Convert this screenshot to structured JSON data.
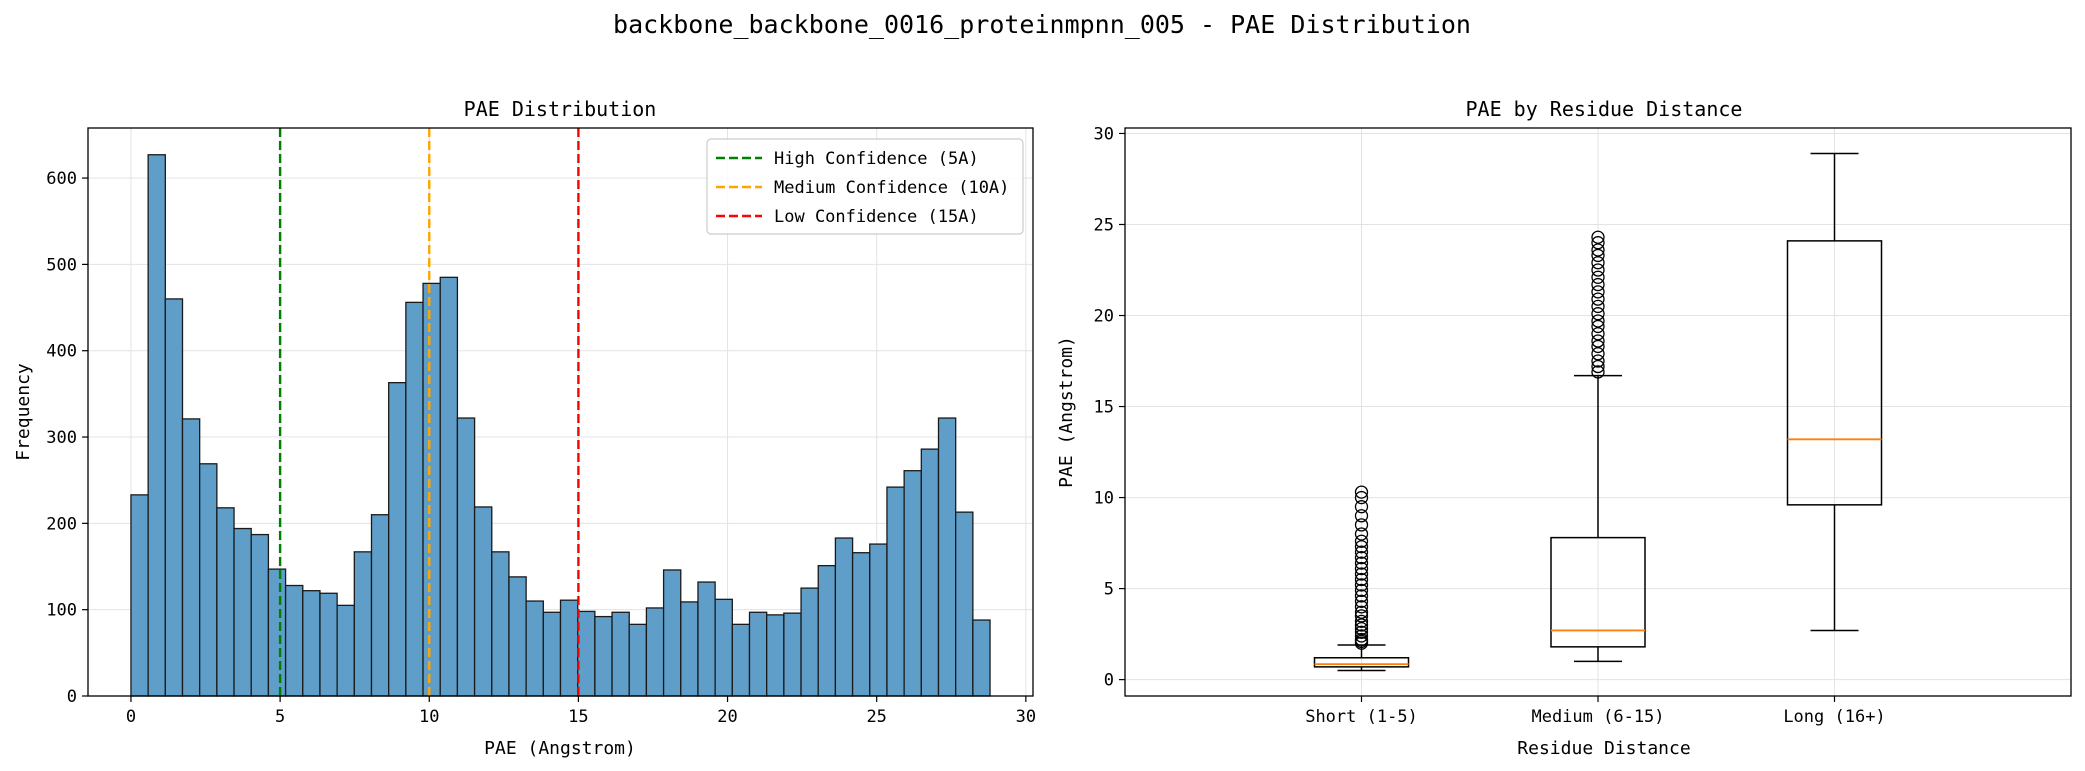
{
  "figure": {
    "suptitle": "backbone_backbone_0016_proteinmpnn_005 - PAE Distribution"
  },
  "chart_data": [
    {
      "type": "bar",
      "title": "PAE Distribution",
      "xlabel": "PAE (Angstrom)",
      "ylabel": "Frequency",
      "xlim": [
        -1.44,
        30.24
      ],
      "ylim": [
        0,
        658
      ],
      "xticks": [
        0,
        5,
        10,
        15,
        20,
        25,
        30
      ],
      "yticks": [
        0,
        100,
        200,
        300,
        400,
        500,
        600
      ],
      "bins": {
        "start": 0,
        "width": 0.576,
        "counts": [
          233,
          627,
          460,
          321,
          269,
          218,
          194,
          187,
          147,
          128,
          122,
          119,
          105,
          167,
          210,
          363,
          456,
          478,
          485,
          322,
          219,
          167,
          138,
          110,
          97,
          111,
          98,
          92,
          97,
          83,
          102,
          146,
          109,
          132,
          112,
          83,
          97,
          94,
          96,
          125,
          151,
          183,
          166,
          176,
          242,
          261,
          286,
          322,
          213,
          88
        ]
      },
      "bar_color": "#5f9ec9",
      "edge_color": "#1a1a1a",
      "reference_lines": [
        {
          "x": 5,
          "label": "High Confidence (5A)",
          "color": "#008000"
        },
        {
          "x": 10,
          "label": "Medium Confidence (10A)",
          "color": "#ffa500"
        },
        {
          "x": 15,
          "label": "Low Confidence (15A)",
          "color": "#ff0000"
        }
      ],
      "legend_position": "top-right",
      "grid": true
    },
    {
      "type": "box",
      "title": "PAE by Residue Distance",
      "xlabel": "Residue Distance",
      "ylabel": "PAE (Angstrom)",
      "ylim": [
        -0.9,
        30.3
      ],
      "yticks": [
        0,
        5,
        10,
        15,
        20,
        25,
        30
      ],
      "categories": [
        "Short (1-5)",
        "Medium (6-15)",
        "Long (16+)"
      ],
      "boxes": [
        {
          "whisker_low": 0.5,
          "q1": 0.7,
          "median": 0.85,
          "q3": 1.2,
          "whisker_high": 1.9,
          "outliers": [
            2.0,
            2.1,
            2.2,
            2.4,
            2.6,
            2.8,
            3.0,
            3.2,
            3.5,
            3.7,
            4.0,
            4.3,
            4.6,
            4.9,
            5.2,
            5.5,
            5.8,
            6.1,
            6.4,
            6.7,
            7.0,
            7.3,
            7.6,
            8.0,
            8.5,
            9.0,
            9.5,
            10.0,
            10.3
          ]
        },
        {
          "whisker_low": 1.0,
          "q1": 1.8,
          "median": 2.7,
          "q3": 7.8,
          "whisker_high": 16.7,
          "outliers": [
            16.9,
            17.2,
            17.5,
            17.9,
            18.3,
            18.6,
            19.0,
            19.4,
            19.7,
            20.1,
            20.5,
            20.9,
            21.3,
            21.7,
            22.1,
            22.5,
            22.9,
            23.3,
            23.6,
            24.0,
            24.3
          ]
        },
        {
          "whisker_low": 2.7,
          "q1": 9.6,
          "median": 13.2,
          "q3": 24.1,
          "whisker_high": 28.9,
          "outliers": []
        }
      ],
      "median_color": "#ff7f0e",
      "grid": true
    }
  ]
}
